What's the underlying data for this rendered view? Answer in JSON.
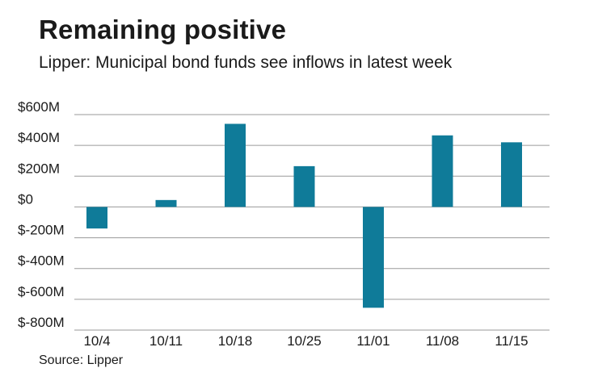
{
  "header": {
    "title": "Remaining positive",
    "subtitle": "Lipper: Municipal bond funds see inflows in latest week"
  },
  "footer": {
    "source": "Source: Lipper"
  },
  "chart_data": {
    "type": "bar",
    "categories": [
      "10/4",
      "10/11",
      "10/18",
      "10/25",
      "11/01",
      "11/08",
      "11/15"
    ],
    "values": [
      -140,
      45,
      540,
      265,
      -655,
      465,
      420
    ],
    "unit": "$M",
    "ylim": [
      -800,
      600
    ],
    "yticks": [
      600,
      400,
      200,
      0,
      -200,
      -400,
      -600,
      -800
    ],
    "ytick_labels": [
      "$600M",
      "$400M",
      "$200M",
      "$0",
      "$-200M",
      "$-400M",
      "$-600M",
      "$-800M"
    ],
    "grid": true,
    "bar_color": "#0f7b99",
    "grid_color": "#9a9a9a"
  }
}
